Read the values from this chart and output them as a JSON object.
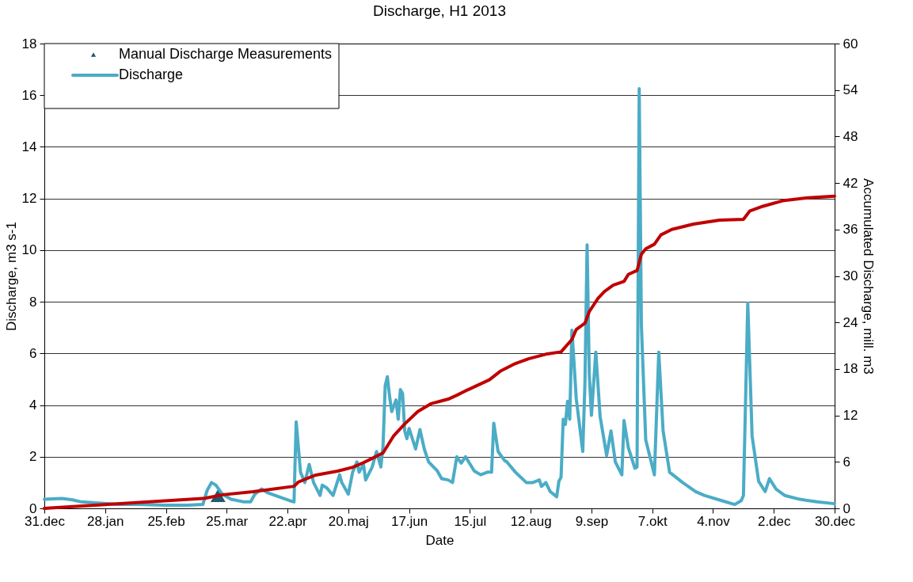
{
  "chart_data": {
    "type": "line",
    "title": "Discharge, H1 2013",
    "xlabel": "Date",
    "ylabel": "Discharge, m3 s-1",
    "y2label": "Accumulated  Discharge, mill. m3",
    "xlim": [
      "2012-12-31",
      "2013-12-30"
    ],
    "xticks": [
      {
        "value": "2012-12-31",
        "label": "31.dec"
      },
      {
        "value": "2013-01-28",
        "label": "28.jan"
      },
      {
        "value": "2013-02-25",
        "label": "25.feb"
      },
      {
        "value": "2013-03-25",
        "label": "25.mar"
      },
      {
        "value": "2013-04-22",
        "label": "22.apr"
      },
      {
        "value": "2013-05-20",
        "label": "20.maj"
      },
      {
        "value": "2013-06-17",
        "label": "17.jun"
      },
      {
        "value": "2013-07-15",
        "label": "15.jul"
      },
      {
        "value": "2013-08-12",
        "label": "12.aug"
      },
      {
        "value": "2013-09-09",
        "label": "9.sep"
      },
      {
        "value": "2013-10-07",
        "label": "7.okt"
      },
      {
        "value": "2013-11-04",
        "label": "4.nov"
      },
      {
        "value": "2013-12-02",
        "label": "2.dec"
      },
      {
        "value": "2013-12-30",
        "label": "30.dec"
      }
    ],
    "ylim": [
      0,
      18
    ],
    "yticks": [
      0,
      2,
      4,
      6,
      8,
      10,
      12,
      14,
      16,
      18
    ],
    "y2lim": [
      0,
      60
    ],
    "y2ticks": [
      0,
      6,
      12,
      18,
      24,
      30,
      36,
      42,
      48,
      54,
      60
    ],
    "grid": "y",
    "legend": "top left",
    "series": [
      {
        "name": "Manual Discharge Measurements",
        "type": "scatter",
        "marker": "triangle",
        "color": "#215a6b",
        "x": [
          "2013-03-21"
        ],
        "values": [
          0.5
        ]
      },
      {
        "name": "Discharge",
        "color": "#4bacc6",
        "x": [
          "2012-12-31",
          "2013-01-08",
          "2013-01-13",
          "2013-01-17",
          "2013-01-26",
          "2013-02-03",
          "2013-02-13",
          "2013-02-24",
          "2013-03-07",
          "2013-03-14",
          "2013-03-16",
          "2013-03-18",
          "2013-03-20",
          "2013-03-23",
          "2013-03-27",
          "2013-04-02",
          "2013-04-05",
          "2013-04-07",
          "2013-04-10",
          "2013-04-13",
          "2013-04-18",
          "2013-04-23",
          "2013-04-25",
          "2013-04-26",
          "2013-04-28",
          "2013-04-30",
          "2013-05-02",
          "2013-05-04",
          "2013-05-07",
          "2013-05-08",
          "2013-05-10",
          "2013-05-13",
          "2013-05-16",
          "2013-05-17",
          "2013-05-20",
          "2013-05-22",
          "2013-05-24",
          "2013-05-25",
          "2013-05-27",
          "2013-05-28",
          "2013-05-31",
          "2013-06-02",
          "2013-06-04",
          "2013-06-05",
          "2013-06-06",
          "2013-06-07",
          "2013-06-08",
          "2013-06-09",
          "2013-06-11",
          "2013-06-12",
          "2013-06-13",
          "2013-06-14",
          "2013-06-15",
          "2013-06-16",
          "2013-06-17",
          "2013-06-20",
          "2013-06-22",
          "2013-06-24",
          "2013-06-26",
          "2013-06-30",
          "2013-07-02",
          "2013-07-05",
          "2013-07-07",
          "2013-07-09",
          "2013-07-11",
          "2013-07-13",
          "2013-07-17",
          "2013-07-20",
          "2013-07-23",
          "2013-07-25",
          "2013-07-26",
          "2013-07-28",
          "2013-07-31",
          "2013-08-01",
          "2013-08-05",
          "2013-08-10",
          "2013-08-13",
          "2013-08-16",
          "2013-08-17",
          "2013-08-19",
          "2013-08-21",
          "2013-08-24",
          "2013-08-25",
          "2013-08-26",
          "2013-08-27",
          "2013-08-28",
          "2013-08-29",
          "2013-08-30",
          "2013-08-31",
          "2013-09-01",
          "2013-09-02",
          "2013-09-05",
          "2013-09-06",
          "2013-09-07",
          "2013-09-08",
          "2013-09-09",
          "2013-09-11",
          "2013-09-13",
          "2013-09-16",
          "2013-09-18",
          "2013-09-20",
          "2013-09-23",
          "2013-09-24",
          "2013-09-26",
          "2013-09-29",
          "2013-09-30",
          "2013-10-01",
          "2013-10-02",
          "2013-10-04",
          "2013-10-08",
          "2013-10-10",
          "2013-10-12",
          "2013-10-15",
          "2013-10-21",
          "2013-10-27",
          "2013-10-31",
          "2013-11-08",
          "2013-11-14",
          "2013-11-17",
          "2013-11-18",
          "2013-11-20",
          "2013-11-22",
          "2013-11-25",
          "2013-11-28",
          "2013-11-30",
          "2013-12-03",
          "2013-12-07",
          "2013-12-14",
          "2013-12-22",
          "2013-12-30"
        ],
        "values": [
          0.35,
          0.38,
          0.33,
          0.25,
          0.2,
          0.15,
          0.15,
          0.12,
          0.12,
          0.15,
          0.7,
          1.0,
          0.9,
          0.55,
          0.35,
          0.25,
          0.25,
          0.55,
          0.75,
          0.6,
          0.45,
          0.3,
          0.25,
          3.35,
          1.4,
          1.0,
          1.7,
          1.0,
          0.5,
          0.9,
          0.8,
          0.5,
          1.3,
          1.0,
          0.55,
          1.4,
          1.8,
          1.4,
          1.7,
          1.1,
          1.6,
          2.2,
          1.6,
          2.4,
          4.75,
          5.1,
          4.35,
          3.75,
          4.2,
          3.45,
          4.6,
          4.45,
          3.0,
          2.7,
          3.1,
          2.3,
          3.05,
          2.3,
          1.8,
          1.45,
          1.15,
          1.1,
          1.0,
          2.0,
          1.75,
          2.0,
          1.45,
          1.3,
          1.4,
          1.4,
          3.3,
          2.2,
          1.85,
          1.8,
          1.4,
          1.0,
          1.0,
          1.1,
          0.85,
          1.0,
          0.65,
          0.45,
          1.05,
          1.2,
          3.45,
          3.25,
          4.15,
          3.45,
          6.9,
          5.6,
          4.25,
          2.2,
          4.85,
          10.2,
          5.2,
          3.6,
          6.05,
          3.55,
          2.05,
          3.0,
          1.8,
          1.3,
          3.4,
          2.35,
          1.55,
          1.6,
          16.25,
          7.1,
          2.65,
          1.3,
          6.05,
          3.0,
          1.4,
          1.0,
          0.65,
          0.5,
          0.3,
          0.15,
          0.3,
          0.5,
          7.95,
          2.8,
          1.05,
          0.65,
          1.15,
          0.75,
          0.5,
          0.35,
          0.25,
          0.18
        ]
      },
      {
        "axis": "y2",
        "color": "#c00000",
        "x": [
          "2012-12-31",
          "2013-03-15",
          "2013-03-23",
          "2013-04-06",
          "2013-04-25",
          "2013-04-27",
          "2013-05-05",
          "2013-05-15",
          "2013-05-22",
          "2013-05-27",
          "2013-05-31",
          "2013-06-05",
          "2013-06-10",
          "2013-06-15",
          "2013-06-21",
          "2013-06-27",
          "2013-07-05",
          "2013-07-09",
          "2013-07-14",
          "2013-07-24",
          "2013-07-29",
          "2013-08-05",
          "2013-08-11",
          "2013-08-19",
          "2013-08-26",
          "2013-08-31",
          "2013-09-02",
          "2013-09-06",
          "2013-09-08",
          "2013-09-12",
          "2013-09-15",
          "2013-09-19",
          "2013-09-24",
          "2013-09-26",
          "2013-09-30",
          "2013-10-02",
          "2013-10-04",
          "2013-10-08",
          "2013-10-11",
          "2013-10-16",
          "2013-10-26",
          "2013-11-07",
          "2013-11-18",
          "2013-11-21",
          "2013-11-27",
          "2013-12-06",
          "2013-12-18",
          "2013-12-30"
        ],
        "values": [
          0,
          1.3,
          1.75,
          2.15,
          2.85,
          3.4,
          4.3,
          4.8,
          5.3,
          5.9,
          6.45,
          7.15,
          9.4,
          10.9,
          12.5,
          13.5,
          14.1,
          14.6,
          15.3,
          16.6,
          17.7,
          18.7,
          19.3,
          19.9,
          20.2,
          21.8,
          23.1,
          23.9,
          25.4,
          27.1,
          28.0,
          28.8,
          29.3,
          30.2,
          30.7,
          32.8,
          33.5,
          34.1,
          35.3,
          36.0,
          36.7,
          37.2,
          37.3,
          38.4,
          39.0,
          39.7,
          40.1,
          40.3
        ]
      }
    ]
  }
}
